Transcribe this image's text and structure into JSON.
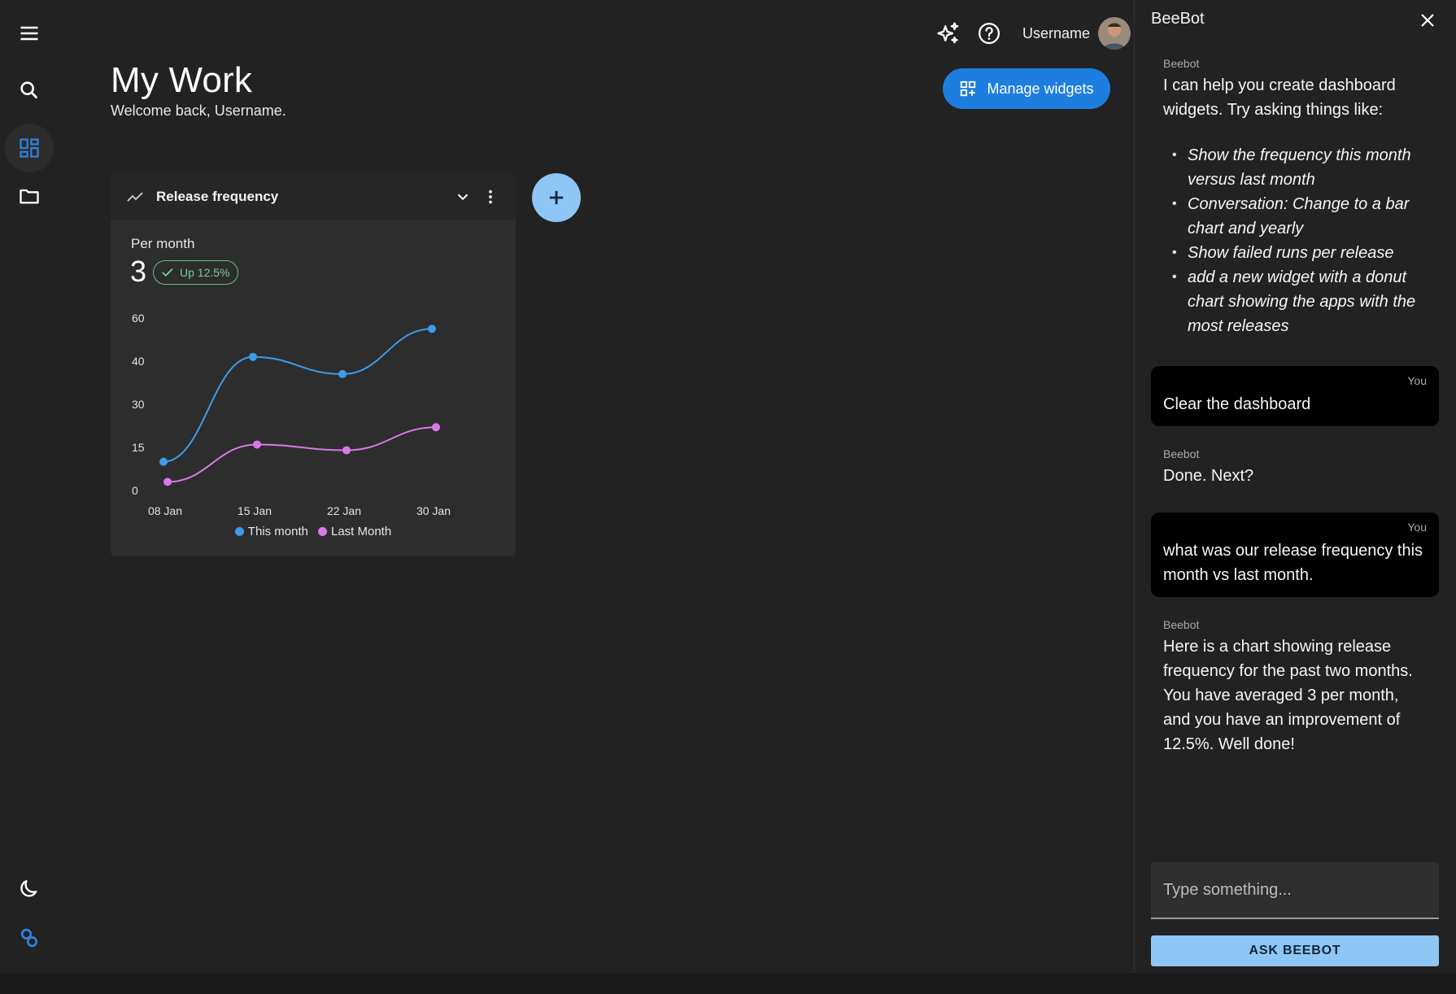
{
  "rail": {
    "items": [
      {
        "icon": "menu-icon"
      },
      {
        "icon": "search-icon"
      },
      {
        "icon": "dashboard-icon",
        "active": true
      },
      {
        "icon": "folder-icon"
      }
    ],
    "bottom": [
      {
        "icon": "moon-icon"
      },
      {
        "icon": "logo-icon"
      }
    ]
  },
  "header": {
    "title": "My Work",
    "subtitle": "Welcome back, Username.",
    "username": "Username",
    "manage_widgets_label": "Manage widgets"
  },
  "widget": {
    "title": "Release frequency",
    "metric_label": "Per month",
    "metric_value": "3",
    "badge": "Up 12.5%"
  },
  "chart_data": {
    "type": "line",
    "categories": [
      "08 Jan",
      "15 Jan",
      "22 Jan",
      "30 Jan"
    ],
    "y_ticks": [
      "60",
      "40",
      "30",
      "15",
      "0"
    ],
    "series": [
      {
        "name": "This month",
        "color": "#3d9be9",
        "values": [
          10,
          42,
          37,
          55
        ]
      },
      {
        "name": "Last Month",
        "color": "#d77ae6",
        "values": [
          3,
          16,
          14,
          22
        ]
      }
    ]
  },
  "chat": {
    "title": "BeeBot",
    "messages": [
      {
        "role": "bot",
        "sender": "Beebot",
        "text": "I can help you create dashboard widgets. Try asking things like:",
        "bullets": [
          "Show the frequency this month versus last month",
          "Conversation: Change to a bar chart and yearly",
          "Show failed runs per release",
          "add a new widget with a donut chart showing the apps with the most releases"
        ]
      },
      {
        "role": "user",
        "sender": "You",
        "text": "Clear the dashboard"
      },
      {
        "role": "bot",
        "sender": "Beebot",
        "text": "Done. Next?"
      },
      {
        "role": "user",
        "sender": "You",
        "text": "what was our release frequency this month vs last month."
      },
      {
        "role": "bot",
        "sender": "Beebot",
        "text": "Here is a chart showing release frequency for the past two months. You have averaged 3 per month, and you have an improvement of 12.5%. Well done!"
      }
    ],
    "input_placeholder": "Type something...",
    "ask_label": "ASK BEEBOT"
  }
}
